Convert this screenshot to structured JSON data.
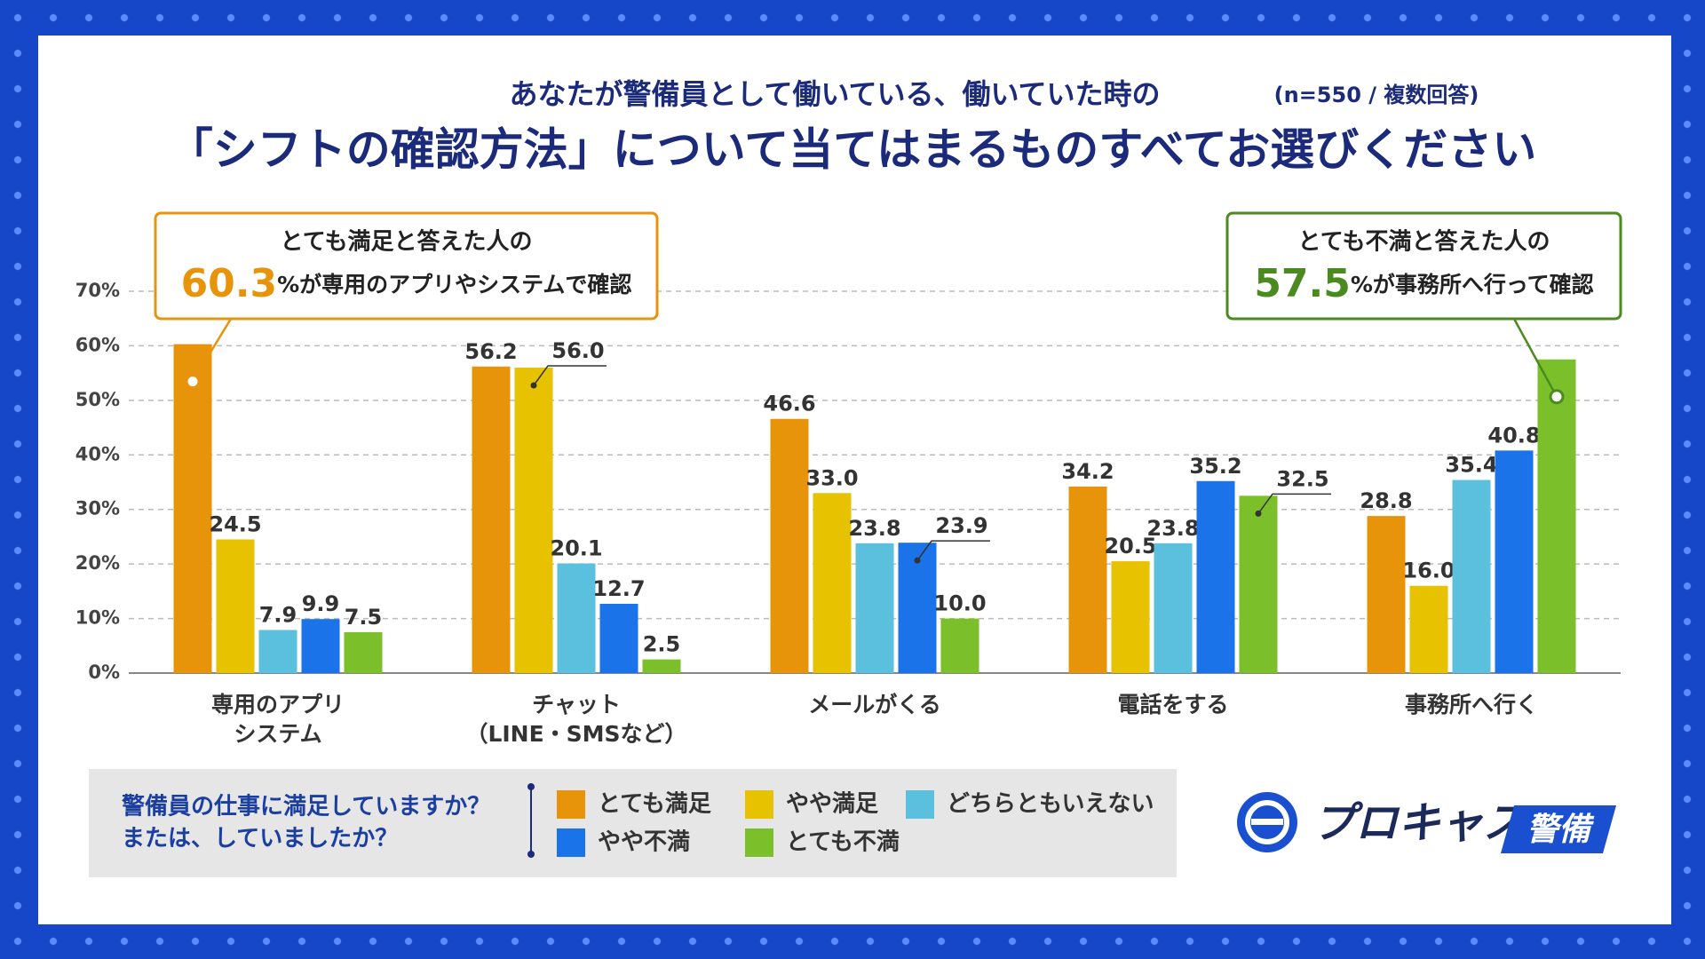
{
  "chart_data": {
    "type": "bar",
    "subtitle": "あなたが警備員として働いている、働いていた時の",
    "note": "(n=550 / 複数回答)",
    "title": "「シフトの確認方法」について当てはまるものすべてお選びください",
    "categories": [
      [
        "専用のアプリ",
        "システム"
      ],
      [
        "チャット",
        "（LINE・SMSなど）"
      ],
      [
        "メールがくる"
      ],
      [
        "電話をする"
      ],
      [
        "事務所へ行く"
      ]
    ],
    "series": [
      {
        "name": "とても満足",
        "color": "#e8940a",
        "values": [
          60.3,
          56.2,
          46.6,
          34.2,
          28.8
        ],
        "value_labels": [
          null,
          "56.2",
          "46.6",
          "34.2",
          "28.8"
        ]
      },
      {
        "name": "やや満足",
        "color": "#e6c200",
        "values": [
          24.5,
          56.0,
          33.0,
          20.5,
          16.0
        ],
        "value_labels": [
          "24.5",
          "56.0",
          "33.0",
          "20.5",
          "16.0"
        ]
      },
      {
        "name": "どちらともいえない",
        "color": "#5bc0de",
        "values": [
          7.9,
          20.1,
          23.8,
          23.8,
          35.4
        ],
        "value_labels": [
          "7.9",
          "20.1",
          "23.8",
          "23.8",
          "35.4"
        ]
      },
      {
        "name": "やや不満",
        "color": "#1a73e8",
        "values": [
          9.9,
          12.7,
          23.9,
          35.2,
          40.8
        ],
        "value_labels": [
          "9.9",
          "12.7",
          "23.9",
          "35.2",
          "40.8"
        ]
      },
      {
        "name": "とても不満",
        "color": "#7bbf2a",
        "values": [
          7.5,
          2.5,
          10.0,
          32.5,
          57.5
        ],
        "value_labels": [
          "7.5",
          "2.5",
          "10.0",
          "32.5",
          null
        ]
      }
    ],
    "ylim": [
      0,
      70
    ],
    "yticks": [
      {
        "value": 0,
        "label": "0%"
      },
      {
        "value": 10,
        "label": "10%"
      },
      {
        "value": 20,
        "label": "20%"
      },
      {
        "value": 30,
        "label": "30%"
      },
      {
        "value": 40,
        "label": "40%"
      },
      {
        "value": 50,
        "label": "50%"
      },
      {
        "value": 60,
        "label": "60%"
      },
      {
        "value": 70,
        "label": "70%"
      }
    ],
    "grid": true,
    "legend_title": [
      "警備員の仕事に満足していますか？",
      "または、していましたか？"
    ],
    "annotations": [
      {
        "top": "とても満足と答えた人の",
        "highlight": "60.3",
        "rest": "%が専用のアプリやシステムで確認"
      },
      {
        "top": "とても不満と答えた人の",
        "highlight": "57.5",
        "rest": "%が事務所へ行って確認"
      }
    ]
  },
  "logo": {
    "name": "プロキャス",
    "badge": "警備"
  }
}
